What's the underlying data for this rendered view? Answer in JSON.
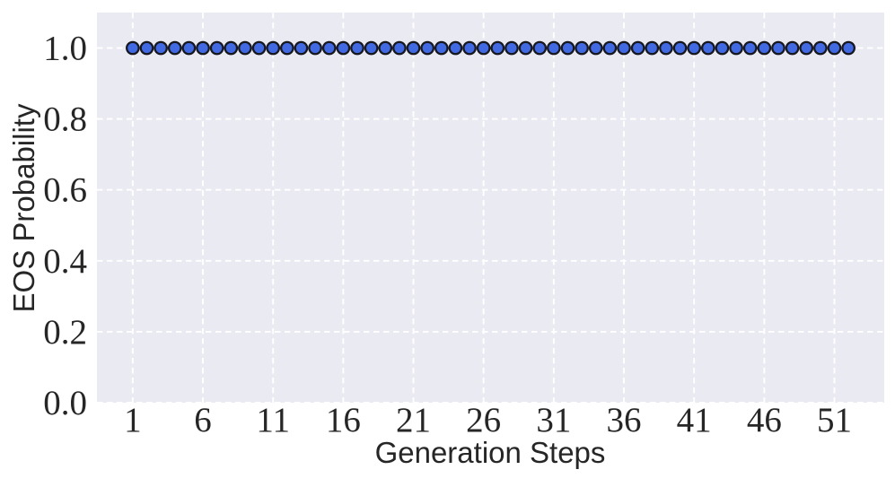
{
  "chart_data": {
    "type": "scatter",
    "title": "",
    "xlabel": "Generation Steps",
    "ylabel": "EOS Probability",
    "x": [
      1,
      2,
      3,
      4,
      5,
      6,
      7,
      8,
      9,
      10,
      11,
      12,
      13,
      14,
      15,
      16,
      17,
      18,
      19,
      20,
      21,
      22,
      23,
      24,
      25,
      26,
      27,
      28,
      29,
      30,
      31,
      32,
      33,
      34,
      35,
      36,
      37,
      38,
      39,
      40,
      41,
      42,
      43,
      44,
      45,
      46,
      47,
      48,
      49,
      50,
      51,
      52
    ],
    "y": [
      1.0,
      1.0,
      1.0,
      1.0,
      1.0,
      1.0,
      1.0,
      1.0,
      1.0,
      1.0,
      1.0,
      1.0,
      1.0,
      1.0,
      1.0,
      1.0,
      1.0,
      1.0,
      1.0,
      1.0,
      1.0,
      1.0,
      1.0,
      1.0,
      1.0,
      1.0,
      1.0,
      1.0,
      1.0,
      1.0,
      1.0,
      1.0,
      1.0,
      1.0,
      1.0,
      1.0,
      1.0,
      1.0,
      1.0,
      1.0,
      1.0,
      1.0,
      1.0,
      1.0,
      1.0,
      1.0,
      1.0,
      1.0,
      1.0,
      1.0,
      1.0,
      1.0
    ],
    "xlim": [
      -1.55,
      54.55
    ],
    "ylim": [
      0,
      1.1
    ],
    "xticks": [
      1,
      6,
      11,
      16,
      21,
      26,
      31,
      36,
      41,
      46,
      51
    ],
    "xtick_labels": [
      "1",
      "6",
      "11",
      "16",
      "21",
      "26",
      "31",
      "36",
      "41",
      "46",
      "51"
    ],
    "yticks": [
      0.0,
      0.2,
      0.4,
      0.6,
      0.8,
      1.0
    ],
    "ytick_labels": [
      "0.0",
      "0.2",
      "0.4",
      "0.6",
      "0.8",
      "1.0"
    ],
    "grid": {
      "visible": true,
      "style": "dashed",
      "axis": "both"
    },
    "legend": {
      "visible": false
    },
    "colors": {
      "figure_background": "#ffffff",
      "plot_background": "#eaeaf2",
      "grid": "#ffffff",
      "marker_fill": "#4169e1",
      "marker_edge": "#17171f",
      "tick_text": "#262626",
      "label_text": "#262626"
    }
  }
}
